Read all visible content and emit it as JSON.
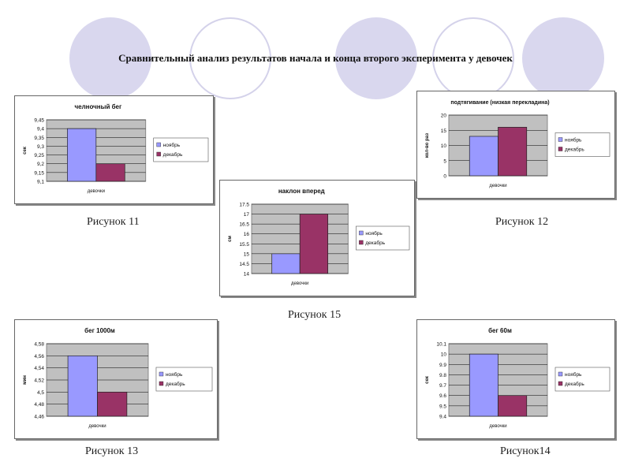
{
  "slide_title": "Сравнительный анализ результатов начала и конца второго эксперимента у девочек",
  "colors": {
    "november": "#9999ff",
    "december": "#993366",
    "plot_bg": "#c0c0c0",
    "circle": "#d9d7ee"
  },
  "captions": {
    "c11": "Рисунок 11",
    "c12": "Рисунок 12",
    "c15": "Рисунок 15",
    "c13": "Рисунок 13",
    "c14": "Рисунок14"
  },
  "chart_data": [
    {
      "id": "c11",
      "type": "bar",
      "title": "челночный бег",
      "ylabel": "сек",
      "xlabel": "девочки",
      "categories": [
        "девочки"
      ],
      "series": [
        {
          "name": "ноябрь",
          "values": [
            9.4
          ]
        },
        {
          "name": "декабрь",
          "values": [
            9.2
          ]
        }
      ],
      "ylim": [
        9.1,
        9.45
      ],
      "yticks": [
        "9,1",
        "9,15",
        "9,2",
        "9,25",
        "9,3",
        "9,35",
        "9,4",
        "9,45"
      ],
      "ystep": 0.05,
      "legend": "right",
      "grid": true
    },
    {
      "id": "c12",
      "type": "bar",
      "title": "подтягивание (низкая перекладина)",
      "ylabel": "кол-во раз",
      "xlabel": "девочки",
      "categories": [
        "девочки"
      ],
      "series": [
        {
          "name": "ноябрь",
          "values": [
            13
          ]
        },
        {
          "name": "декабрь",
          "values": [
            16
          ]
        }
      ],
      "ylim": [
        0,
        20
      ],
      "yticks": [
        "0",
        "5",
        "10",
        "15",
        "20"
      ],
      "ystep": 5,
      "legend": "right",
      "grid": true
    },
    {
      "id": "c15",
      "type": "bar",
      "title": "наклон вперед",
      "ylabel": "см",
      "xlabel": "девочки",
      "categories": [
        "девочки"
      ],
      "series": [
        {
          "name": "ноябрь",
          "values": [
            15
          ]
        },
        {
          "name": "декабрь",
          "values": [
            17
          ]
        }
      ],
      "ylim": [
        14,
        17.5
      ],
      "yticks": [
        "14",
        "14.5",
        "15",
        "15.5",
        "16",
        "16.5",
        "17",
        "17.5"
      ],
      "ystep": 0.5,
      "legend": "right",
      "grid": true
    },
    {
      "id": "c13",
      "type": "bar",
      "title": "бег 1000м",
      "ylabel": "мин",
      "xlabel": "девочки",
      "categories": [
        "девочки"
      ],
      "series": [
        {
          "name": "ноябрь",
          "values": [
            4.56
          ]
        },
        {
          "name": "декабрь",
          "values": [
            4.5
          ]
        }
      ],
      "ylim": [
        4.46,
        4.58
      ],
      "yticks": [
        "4,46",
        "4,48",
        "4,5",
        "4,52",
        "4,54",
        "4,56",
        "4,58"
      ],
      "ystep": 0.02,
      "legend": "right",
      "grid": true
    },
    {
      "id": "c14",
      "type": "bar",
      "title": "бег 60м",
      "ylabel": "сек",
      "xlabel": "девочки",
      "categories": [
        "девочки"
      ],
      "series": [
        {
          "name": "ноябрь",
          "values": [
            10.0
          ]
        },
        {
          "name": "декабрь",
          "values": [
            9.6
          ]
        }
      ],
      "ylim": [
        9.4,
        10.1
      ],
      "yticks": [
        "9.4",
        "9.5",
        "9.6",
        "9.7",
        "9.8",
        "9.9",
        "10",
        "10.1"
      ],
      "ystep": 0.1,
      "legend": "right",
      "grid": true
    }
  ]
}
